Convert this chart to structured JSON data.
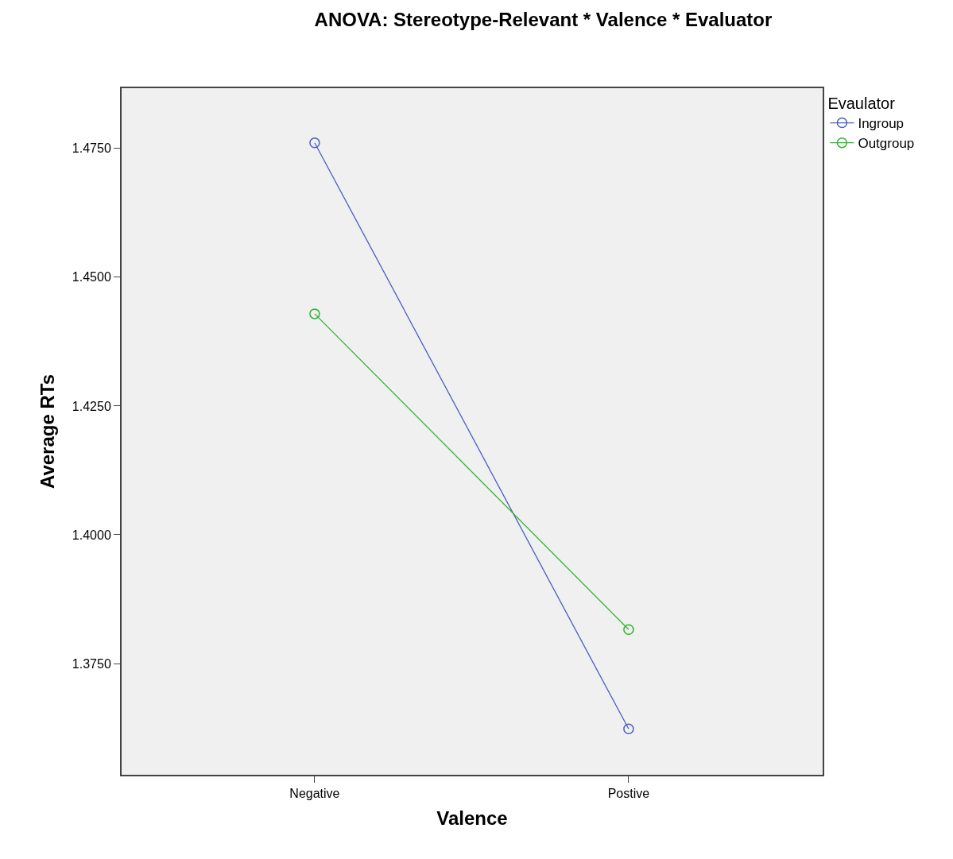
{
  "chart_data": {
    "type": "line",
    "title": "ANOVA: Stereotype-Relevant * Valence * Evaluator",
    "xlabel": "Valence",
    "ylabel": "Average RTs",
    "legend_title": "Evaulator",
    "categories": [
      "Negative",
      "Postive"
    ],
    "series": [
      {
        "name": "Ingroup",
        "color": "#4a5fc1",
        "values": [
          1.4761,
          1.3623
        ]
      },
      {
        "name": "Outgroup",
        "color": "#2db52d",
        "values": [
          1.4429,
          1.3816
        ]
      }
    ],
    "ylim": [
      1.3534,
      1.4867
    ],
    "yticks": [
      {
        "value": 1.375,
        "label": "1.3750"
      },
      {
        "value": 1.4,
        "label": "1.4000"
      },
      {
        "value": 1.425,
        "label": "1.4250"
      },
      {
        "value": 1.45,
        "label": "1.4500"
      },
      {
        "value": 1.475,
        "label": "1.4750"
      }
    ],
    "marker": "circle",
    "line_style": "solid",
    "grid": false,
    "legend": "top right"
  }
}
